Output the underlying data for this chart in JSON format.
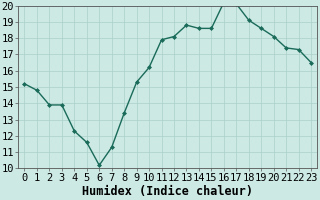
{
  "x": [
    0,
    1,
    2,
    3,
    4,
    5,
    6,
    7,
    8,
    9,
    10,
    11,
    12,
    13,
    14,
    15,
    16,
    17,
    18,
    19,
    20,
    21,
    22,
    23
  ],
  "y": [
    15.2,
    14.8,
    13.9,
    13.9,
    12.3,
    11.6,
    10.2,
    11.3,
    13.4,
    15.3,
    16.2,
    17.9,
    18.1,
    18.8,
    18.6,
    18.6,
    20.2,
    20.1,
    19.1,
    18.6,
    18.1,
    17.4,
    17.3,
    16.5
  ],
  "line_color": "#1a6b5a",
  "marker": "D",
  "marker_size": 2.0,
  "bg_color": "#cce9e4",
  "grid_color": "#aad0ca",
  "xlabel": "Humidex (Indice chaleur)",
  "ylabel_ticks": [
    10,
    11,
    12,
    13,
    14,
    15,
    16,
    17,
    18,
    19,
    20
  ],
  "ylim": [
    10,
    20
  ],
  "xlim": [
    -0.5,
    23.5
  ],
  "tick_fontsize": 7.5,
  "xlabel_fontsize": 8.5,
  "linewidth": 1.0
}
